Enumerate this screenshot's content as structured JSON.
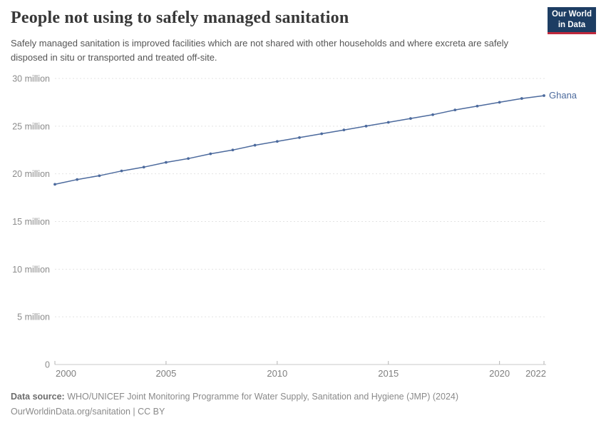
{
  "header": {
    "title": "People not using to safely managed sanitation",
    "subtitle": "Safely managed sanitation is improved facilities which are not shared with other households and where excreta are safely disposed in situ or transported and treated off-site.",
    "logo": {
      "line1": "Our World",
      "line2": "in Data",
      "bg_color": "#1d3d63",
      "accent_color": "#c0293c"
    }
  },
  "chart_data": {
    "type": "line",
    "title": "People not using to safely managed sanitation",
    "unit_suffix": " million",
    "xlabel": "",
    "ylabel": "",
    "xlim": [
      2000,
      2022
    ],
    "ylim": [
      0,
      30
    ],
    "x_ticks": [
      2000,
      2005,
      2010,
      2015,
      2020,
      2022
    ],
    "y_ticks": [
      0,
      5,
      10,
      15,
      20,
      25,
      30
    ],
    "grid": "horizontal-dashed",
    "legend_position": "line-end-label",
    "series": [
      {
        "name": "Ghana",
        "color": "#4c6a9d",
        "x": [
          2000,
          2001,
          2002,
          2003,
          2004,
          2005,
          2006,
          2007,
          2008,
          2009,
          2010,
          2011,
          2012,
          2013,
          2014,
          2015,
          2016,
          2017,
          2018,
          2019,
          2020,
          2021,
          2022
        ],
        "values": [
          18.9,
          19.4,
          19.8,
          20.3,
          20.7,
          21.2,
          21.6,
          22.1,
          22.5,
          23.0,
          23.4,
          23.8,
          24.2,
          24.6,
          25.0,
          25.4,
          25.8,
          26.2,
          26.7,
          27.1,
          27.5,
          27.9,
          28.2
        ]
      }
    ]
  },
  "footer": {
    "source_label": "Data source:",
    "source_text": " WHO/UNICEF Joint Monitoring Programme for Water Supply, Sanitation and Hygiene (JMP) (2024)",
    "link_line": "OurWorldinData.org/sanitation | CC BY"
  }
}
